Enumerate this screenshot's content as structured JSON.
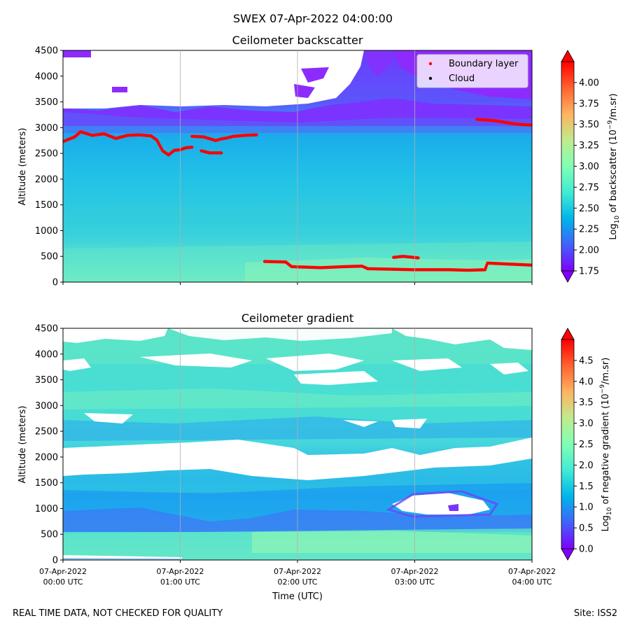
{
  "figure_title": "SWEX 07-Apr-2022 04:00:00",
  "footer": {
    "disclaimer": "REAL TIME DATA, NOT CHECKED FOR QUALITY",
    "site": "Site: ISS2"
  },
  "chart_data": [
    {
      "type": "heatmap",
      "title": "Ceilometer backscatter",
      "xlabel": "",
      "ylabel": "Altitude (meters)",
      "ylim": [
        0,
        4500
      ],
      "xlim": [
        "07-Apr-2022 00:00 UTC",
        "07-Apr-2022 04:00 UTC"
      ],
      "y_ticks": [
        0,
        500,
        1000,
        1500,
        2000,
        2500,
        3000,
        3500,
        4000,
        4500
      ],
      "x_ticks_hours": [
        0,
        1,
        2,
        3,
        4
      ],
      "grid": true,
      "colorbar": {
        "label": "Log10 of backscatter (10^-9/m.sr)",
        "label_main": "Log",
        "label_sub": "10",
        "label_mid": " of backscatter (10",
        "label_sup": "−9",
        "label_end": "/m.sr)",
        "range": [
          1.75,
          4.25
        ],
        "ticks": [
          "1.75",
          "2.00",
          "2.25",
          "2.50",
          "2.75",
          "3.00",
          "3.25",
          "3.50",
          "3.75",
          "4.00"
        ],
        "extend": "both",
        "colormap": "rainbow"
      },
      "legend": {
        "placement": "top-right",
        "entries": [
          {
            "label": "Boundary layer",
            "color": "#ff0000"
          },
          {
            "label": "Cloud",
            "color": "#000000"
          }
        ]
      },
      "boundary_layer_upper": {
        "hours": [
          0.0,
          0.1,
          0.15,
          0.25,
          0.35,
          0.45,
          0.55,
          0.65,
          0.75,
          0.8,
          0.85,
          0.9,
          0.95,
          1.0,
          1.05,
          1.1
        ],
        "altitude_m": [
          2730,
          2820,
          2920,
          2850,
          2880,
          2790,
          2850,
          2860,
          2840,
          2760,
          2550,
          2470,
          2560,
          2570,
          2610,
          2620
        ]
      },
      "boundary_layer_upper2": {
        "hours": [
          1.1,
          1.2,
          1.3,
          1.35,
          1.4,
          1.45,
          1.55,
          1.65
        ],
        "altitude_m": [
          2830,
          2820,
          2750,
          2780,
          2800,
          2830,
          2850,
          2860
        ]
      },
      "boundary_layer_dip": {
        "hours": [
          1.18,
          1.25,
          1.35
        ],
        "altitude_m": [
          2550,
          2510,
          2510
        ]
      },
      "boundary_layer_upper_late": {
        "hours": [
          3.53,
          3.6,
          3.7,
          3.8,
          3.9,
          4.0
        ],
        "altitude_m": [
          3160,
          3150,
          3130,
          3090,
          3060,
          3050
        ]
      },
      "boundary_layer_lower": {
        "hours": [
          1.72,
          1.9,
          1.95,
          2.2,
          2.4,
          2.55,
          2.6,
          2.8,
          3.0,
          3.2,
          3.3,
          3.45,
          3.6,
          3.62,
          3.8,
          4.0
        ],
        "altitude_m": [
          400,
          390,
          300,
          280,
          300,
          310,
          260,
          250,
          240,
          240,
          240,
          230,
          240,
          370,
          350,
          330
        ]
      },
      "boundary_layer_blip": {
        "hours": [
          2.82,
          2.9,
          3.03
        ],
        "altitude_m": [
          480,
          500,
          470
        ]
      }
    },
    {
      "type": "heatmap",
      "title": "Ceilometer gradient",
      "xlabel": "Time (UTC)",
      "ylabel": "Altitude (meters)",
      "ylim": [
        0,
        4500
      ],
      "y_ticks": [
        0,
        500,
        1000,
        1500,
        2000,
        2500,
        3000,
        3500,
        4000,
        4500
      ],
      "x_ticks": [
        {
          "date": "07-Apr-2022",
          "time": "00:00 UTC"
        },
        {
          "date": "07-Apr-2022",
          "time": "01:00 UTC"
        },
        {
          "date": "07-Apr-2022",
          "time": "02:00 UTC"
        },
        {
          "date": "07-Apr-2022",
          "time": "03:00 UTC"
        },
        {
          "date": "07-Apr-2022",
          "time": "04:00 UTC"
        }
      ],
      "grid": true,
      "colorbar": {
        "label": "Log10 of negative gradient (10^-9/m.sr)",
        "label_main": "Log",
        "label_sub": "10",
        "label_mid": " of negative gradient (10",
        "label_sup": "−9",
        "label_end": "/m.sr)",
        "range": [
          0.0,
          5.0
        ],
        "ticks": [
          "0.0",
          "0.5",
          "1.0",
          "1.5",
          "2.0",
          "2.5",
          "3.0",
          "3.5",
          "4.0",
          "4.5"
        ],
        "extend": "both",
        "colormap": "rainbow"
      }
    }
  ]
}
